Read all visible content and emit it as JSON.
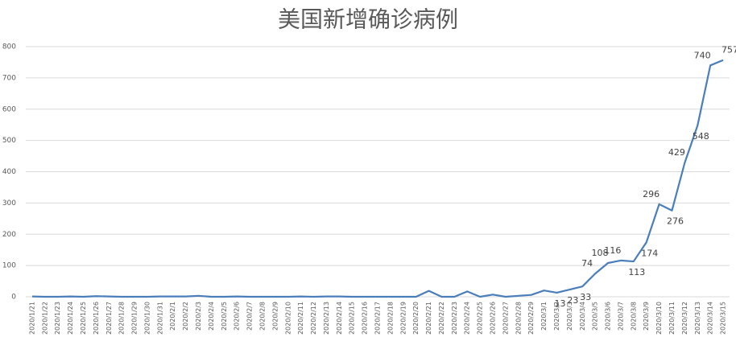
{
  "chart_data": {
    "type": "line",
    "title": "美国新增确诊病例",
    "categories": [
      "2020/1/21",
      "2020/1/22",
      "2020/1/23",
      "2020/1/24",
      "2020/1/25",
      "2020/1/26",
      "2020/1/27",
      "2020/1/28",
      "2020/1/29",
      "2020/1/30",
      "2020/1/31",
      "2020/2/1",
      "2020/2/2",
      "2020/2/3",
      "2020/2/4",
      "2020/2/5",
      "2020/2/6",
      "2020/2/7",
      "2020/2/8",
      "2020/2/9",
      "2020/2/10",
      "2020/2/11",
      "2020/2/12",
      "2020/2/13",
      "2020/2/14",
      "2020/2/15",
      "2020/2/16",
      "2020/2/17",
      "2020/2/18",
      "2020/2/19",
      "2020/2/20",
      "2020/2/21",
      "2020/2/22",
      "2020/2/23",
      "2020/2/24",
      "2020/2/25",
      "2020/2/26",
      "2020/2/27",
      "2020/2/28",
      "2020/2/29",
      "2020/3/1",
      "2020/3/2",
      "2020/3/3",
      "2020/3/4",
      "2020/3/5",
      "2020/3/6",
      "2020/3/7",
      "2020/3/8",
      "2020/3/9",
      "2020/3/10",
      "2020/3/11",
      "2020/3/12",
      "2020/3/13",
      "2020/3/14",
      "2020/3/15"
    ],
    "values": [
      1,
      0,
      0,
      1,
      0,
      2,
      1,
      0,
      0,
      0,
      1,
      1,
      1,
      3,
      0,
      0,
      1,
      0,
      0,
      0,
      0,
      1,
      0,
      1,
      1,
      0,
      0,
      0,
      0,
      0,
      0,
      19,
      0,
      0,
      17,
      0,
      7,
      0,
      3,
      6,
      20,
      13,
      23,
      33,
      74,
      108,
      116,
      113,
      174,
      296,
      276,
      429,
      548,
      740,
      757
    ],
    "value_labels": [
      null,
      null,
      null,
      null,
      null,
      null,
      null,
      null,
      null,
      null,
      null,
      null,
      null,
      null,
      null,
      null,
      null,
      null,
      null,
      null,
      null,
      null,
      null,
      null,
      null,
      null,
      null,
      null,
      null,
      null,
      null,
      null,
      null,
      null,
      null,
      null,
      null,
      null,
      null,
      null,
      null,
      "13",
      "23",
      "33",
      "74",
      "108",
      "116",
      "113",
      "174",
      "296",
      "276",
      "429",
      "548",
      "740",
      "757"
    ],
    "color": "#4a7ebb",
    "ylim": [
      0,
      800
    ],
    "yticks": [
      0,
      100,
      200,
      300,
      400,
      500,
      600,
      700,
      800
    ],
    "grid": true
  }
}
